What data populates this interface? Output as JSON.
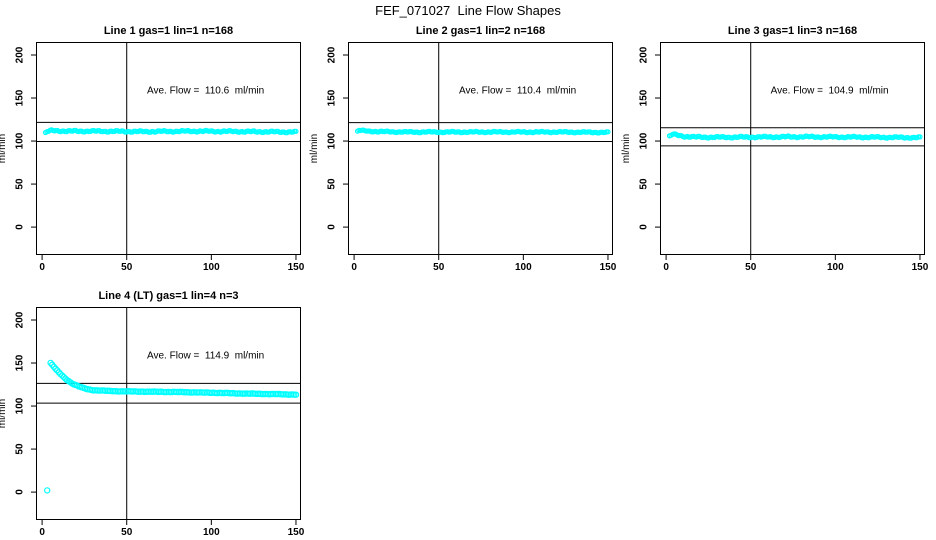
{
  "figure": {
    "title": "FEF_071027  Line Flow Shapes"
  },
  "colors": {
    "background": "#ffffff",
    "axis": "#000000",
    "reference_lines": "#000000",
    "data_series": "#00ffff"
  },
  "chart_data": [
    {
      "type": "scatter",
      "title": "Line 1 gas=1 lin=1 n=168",
      "n": 168,
      "ave_flow": 110.6,
      "ave_flow_label": "Ave. Flow =  110.6  ml/min",
      "ylabel": "ml/min",
      "xlim": [
        0,
        150
      ],
      "ylim": [
        0,
        200
      ],
      "x_ticks": [
        0,
        50,
        100,
        150
      ],
      "y_ticks": [
        0,
        50,
        100,
        150,
        200
      ],
      "vline_x": 50,
      "hlines": [
        121.7,
        99.5
      ],
      "marker": "open-circle",
      "color": "#00ffff",
      "dot_radius": 2.0,
      "noise": 1.0,
      "render_dots": 168,
      "shape": {
        "x": [
          2,
          3,
          5,
          8,
          15,
          30,
          60,
          90,
          120,
          150
        ],
        "y": [
          109.5,
          111,
          112,
          112,
          111.5,
          111.5,
          111,
          111.5,
          111,
          110.5
        ]
      },
      "outlier": null
    },
    {
      "type": "scatter",
      "title": "Line 2 gas=1 lin=2 n=168",
      "n": 168,
      "ave_flow": 110.4,
      "ave_flow_label": "Ave. Flow =  110.4  ml/min",
      "ylabel": "ml/min",
      "xlim": [
        0,
        150
      ],
      "ylim": [
        0,
        200
      ],
      "x_ticks": [
        0,
        50,
        100,
        150
      ],
      "y_ticks": [
        0,
        50,
        100,
        150,
        200
      ],
      "vline_x": 50,
      "hlines": [
        121.4,
        99.4
      ],
      "marker": "open-circle",
      "color": "#00ffff",
      "dot_radius": 2.0,
      "noise": 0.8,
      "render_dots": 168,
      "shape": {
        "x": [
          2,
          3,
          5,
          8,
          15,
          30,
          60,
          90,
          120,
          150
        ],
        "y": [
          111,
          112.5,
          112,
          111.5,
          111,
          110.5,
          110.5,
          110.5,
          110.5,
          110
        ]
      },
      "outlier": null
    },
    {
      "type": "scatter",
      "title": "Line 3 gas=1 lin=3 n=168",
      "n": 168,
      "ave_flow": 104.9,
      "ave_flow_label": "Ave. Flow =  104.9  ml/min",
      "ylabel": "ml/min",
      "xlim": [
        0,
        150
      ],
      "ylim": [
        0,
        200
      ],
      "x_ticks": [
        0,
        50,
        100,
        150
      ],
      "y_ticks": [
        0,
        50,
        100,
        150,
        200
      ],
      "vline_x": 50,
      "hlines": [
        115.4,
        94.4
      ],
      "marker": "open-circle",
      "color": "#00ffff",
      "dot_radius": 2.0,
      "noise": 1.0,
      "render_dots": 168,
      "shape": {
        "x": [
          2,
          4,
          6,
          10,
          20,
          40,
          80,
          120,
          150
        ],
        "y": [
          105.5,
          108,
          107,
          105.5,
          104.5,
          104.5,
          105,
          104.5,
          104
        ]
      },
      "outlier": null
    },
    {
      "type": "scatter",
      "title": "Line 4 (LT) gas=1 lin=4 n=3",
      "n": 3,
      "ave_flow": 114.9,
      "ave_flow_label": "Ave. Flow =  114.9  ml/min",
      "ylabel": "ml/min",
      "xlim": [
        0,
        150
      ],
      "ylim": [
        0,
        200
      ],
      "x_ticks": [
        0,
        50,
        100,
        150
      ],
      "y_ticks": [
        0,
        50,
        100,
        150,
        200
      ],
      "vline_x": 50,
      "hlines": [
        126.4,
        103.4
      ],
      "marker": "open-circle",
      "color": "#00ffff",
      "dot_radius": 2.6,
      "noise": 0.3,
      "render_dots": 150,
      "shape": {
        "x": [
          5,
          6,
          8,
          10,
          12,
          15,
          18,
          22,
          26,
          30,
          35,
          40,
          50,
          60,
          80,
          100,
          120,
          140,
          150
        ],
        "y": [
          150,
          148,
          143,
          139,
          135,
          130,
          126,
          122.5,
          120,
          118.5,
          118,
          117.5,
          117,
          116.8,
          116.3,
          115.5,
          114.5,
          113.8,
          113.3
        ]
      },
      "outlier": {
        "x": 3,
        "y": 2
      }
    }
  ]
}
